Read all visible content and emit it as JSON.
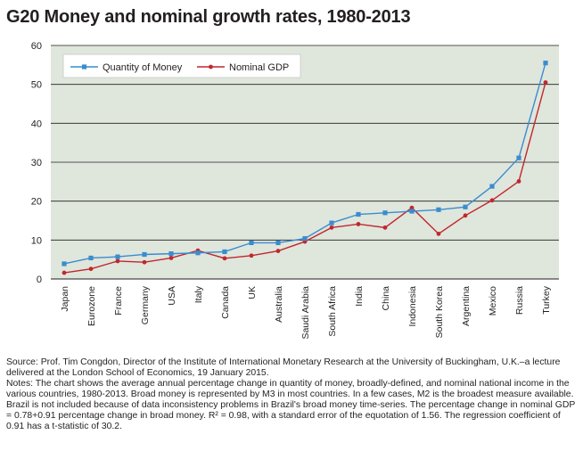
{
  "title": "G20 Money and nominal growth rates, 1980-2013",
  "chart_data": {
    "type": "line",
    "categories": [
      "Japan",
      "Eurozone",
      "France",
      "Germany",
      "USA",
      "Italy",
      "Canada",
      "UK",
      "Australia",
      "Saudi Arabia",
      "South Africa",
      "India",
      "China",
      "Indonesia",
      "South Korea",
      "Argentina",
      "Mexico",
      "Russia",
      "Turkey"
    ],
    "series": [
      {
        "name": "Quantity of Money",
        "color": "#3a8ccf",
        "marker": "square",
        "values": [
          3.9,
          5.4,
          5.7,
          6.3,
          6.5,
          6.7,
          7.0,
          9.3,
          9.3,
          10.4,
          14.4,
          16.6,
          17.0,
          17.4,
          17.8,
          18.5,
          23.8,
          31.1,
          55.5
        ]
      },
      {
        "name": "Nominal GDP",
        "color": "#c1272d",
        "marker": "circle",
        "values": [
          1.6,
          2.6,
          4.6,
          4.3,
          5.4,
          7.3,
          5.3,
          6.0,
          7.2,
          9.6,
          13.2,
          14.1,
          13.2,
          18.3,
          11.6,
          16.3,
          20.2,
          25.1,
          50.5
        ]
      }
    ],
    "ylim": [
      0,
      60
    ],
    "yticks": [
      0,
      10,
      20,
      30,
      40,
      50,
      60
    ],
    "grid": true,
    "legend": "top-left",
    "background": "#dfe6dc"
  },
  "notes": {
    "source": "Source: Prof. Tim Congdon, Director of the Institute of International Monetary Research at the University of Buckingham, U.K.–a lecture delivered at the London School of Economics, 19 January 2015.",
    "body": "Notes: The chart shows the average annual percentage change in quantity of money, broadly-defined, and nominal national income in the various countries, 1980-2013. Broad money is represented by M3 in most countries. In a few cases, M2 is the broadest measure available. Brazil is not included because of data inconsistency problems in Brazil's broad money time-series. The percentage change in nominal GDP = 0.78+0.91 percentage change in broad money. R² = 0.98, with a standard error of the equotation of 1.56. The regression coefficient of 0.91 has a t-statistic of 30.2."
  }
}
